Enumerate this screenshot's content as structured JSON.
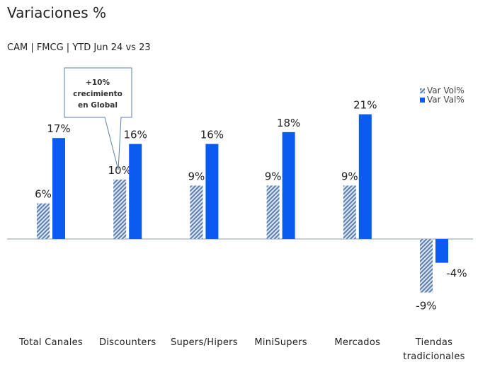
{
  "chart_data": {
    "type": "bar",
    "title": "Variaciones %",
    "subtitle": "CAM | FMCG | YTD Jun 24 vs 23",
    "categories": [
      "Total Canales",
      "Discounters",
      "Supers/Hipers",
      "MiniSupers",
      "Mercados",
      "Tiendas tradicionales"
    ],
    "series": [
      {
        "name": "Var Vol%",
        "values": [
          6,
          10,
          9,
          9,
          9,
          -9
        ],
        "color": "#5b7fb0",
        "pattern": "diagonal-hatch"
      },
      {
        "name": "Var Val%",
        "values": [
          17,
          16,
          16,
          18,
          21,
          -4
        ],
        "color": "#0a5cf0"
      }
    ],
    "data_labels": {
      "Var Vol%": [
        "6%",
        "10%",
        "9%",
        "9%",
        "9%",
        "-9%"
      ],
      "Var Val%": [
        "17%",
        "16%",
        "16%",
        "18%",
        "21%",
        "-4%"
      ]
    },
    "legend": "top-right",
    "grid": false,
    "annotation": {
      "lines": [
        "+10%",
        "crecimiento",
        "en Global"
      ],
      "target": "Discounters"
    }
  }
}
